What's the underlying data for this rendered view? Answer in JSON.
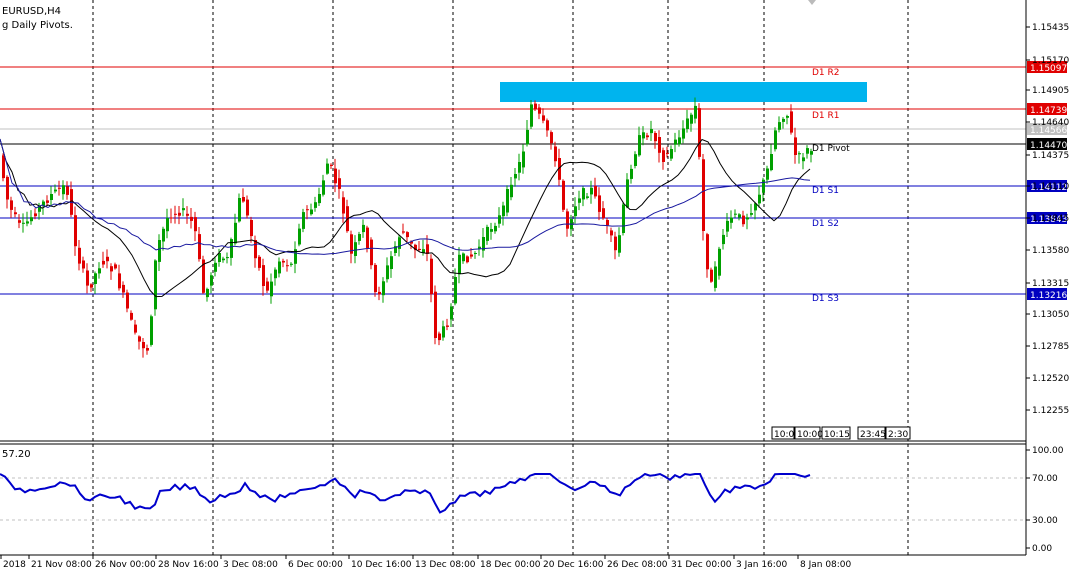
{
  "chart": {
    "symbol_label": "EURUSD,H4",
    "indicator_label": "g Daily Pivots.",
    "up_color": "#00a000",
    "down_color": "#e00000",
    "grid_color": "#000000"
  },
  "price_axis": {
    "ticks": [
      "1.15435",
      "1.15170",
      "1.14905",
      "1.14640",
      "1.14375",
      "1.14110",
      "1.13845",
      "1.13580",
      "1.13315",
      "1.13050",
      "1.12785",
      "1.12520",
      "1.12255"
    ]
  },
  "pivots": [
    {
      "name": "D1 R2",
      "price_tag": "1.15097",
      "color": "#e00000"
    },
    {
      "name": "D1 R1",
      "price_tag": "1.14739",
      "color": "#e00000"
    },
    {
      "name": "D1 Pivot",
      "price_tag": "1.14470",
      "color": "#000000"
    },
    {
      "name": "D1 S1",
      "price_tag": "1.14112",
      "color": "#0000c0"
    },
    {
      "name": "D1 S2",
      "price_tag": "1.13843",
      "color": "#0000c0"
    },
    {
      "name": "D1 S3",
      "price_tag": "1.13216",
      "color": "#0000c0"
    }
  ],
  "current_price_tag": "1.14566",
  "zone": {
    "color": "#00b4ee"
  },
  "session_labels": [
    "10:00",
    "10:00",
    "10:15",
    "23:45",
    "2:30"
  ],
  "oscillator": {
    "value_label": "57.20",
    "axis_ticks": [
      "100.00",
      "70.00",
      "30.00",
      "0.00"
    ],
    "line_color": "#0000cc"
  },
  "time_axis": {
    "labels": [
      "2018",
      "21 Nov 08:00",
      "26 Nov 00:00",
      "28 Nov 16:00",
      "3 Dec 08:00",
      "6 Dec 00:00",
      "10 Dec 16:00",
      "13 Dec 08:00",
      "18 Dec 00:00",
      "20 Dec 16:00",
      "26 Dec 08:00",
      "31 Dec 00:00",
      "3 Jan 16:00",
      "8 Jan 08:00"
    ]
  }
}
